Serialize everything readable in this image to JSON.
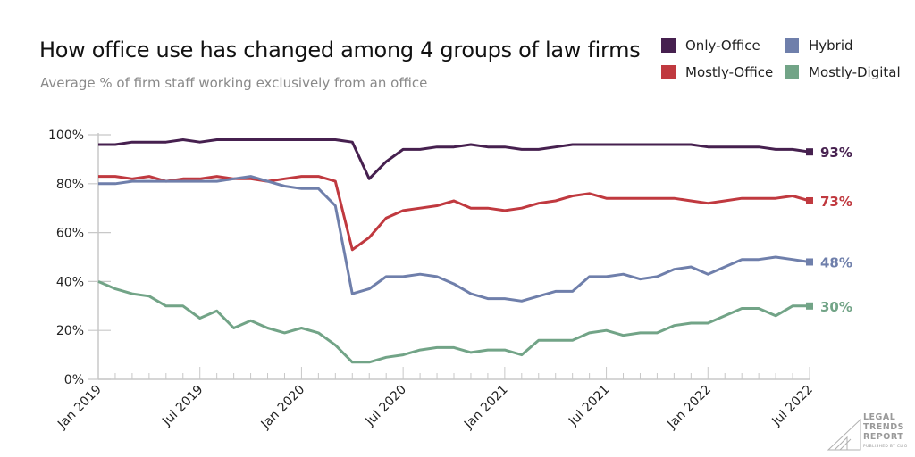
{
  "chart_data": {
    "type": "line",
    "title": "How office use has changed among 4 groups of law firms",
    "subtitle": "Average % of firm staff working exclusively from an office",
    "xlabel": "",
    "ylabel": "",
    "ylim": [
      0,
      100
    ],
    "yticks": [
      0,
      20,
      40,
      60,
      80,
      100
    ],
    "ytick_labels": [
      "0%",
      "20%",
      "40%",
      "60%",
      "80%",
      "100%"
    ],
    "x_start": "Jan 2019",
    "x_end": "Jul 2022",
    "x_count": 43,
    "x_interval": "monthly",
    "xtick_labels": [
      "Jan 2019",
      "Jul 2019",
      "Jan 2020",
      "Jul 2020",
      "Jan 2021",
      "Jul 2021",
      "Jan 2022",
      "Jul 2022"
    ],
    "xtick_indices": [
      0,
      6,
      12,
      18,
      24,
      30,
      36,
      42
    ],
    "grid": false,
    "legend_position": "top-right",
    "series": [
      {
        "name": "Only-Office",
        "color": "#46204f",
        "end_label": "93%",
        "values": [
          96,
          96,
          97,
          97,
          97,
          98,
          97,
          98,
          98,
          98,
          98,
          98,
          98,
          98,
          98,
          97,
          82,
          89,
          94,
          94,
          95,
          95,
          96,
          95,
          95,
          94,
          94,
          95,
          96,
          96,
          96,
          96,
          96,
          96,
          96,
          96,
          95,
          95,
          95,
          95,
          94,
          94,
          93
        ]
      },
      {
        "name": "Mostly-Office",
        "color": "#c0393f",
        "end_label": "73%",
        "values": [
          83,
          83,
          82,
          83,
          81,
          82,
          82,
          83,
          82,
          82,
          81,
          82,
          83,
          83,
          81,
          53,
          58,
          66,
          69,
          70,
          71,
          73,
          70,
          70,
          69,
          70,
          72,
          73,
          75,
          76,
          74,
          74,
          74,
          74,
          74,
          73,
          72,
          73,
          74,
          74,
          74,
          75,
          73
        ]
      },
      {
        "name": "Hybrid",
        "color": "#6f7fab",
        "end_label": "48%",
        "values": [
          80,
          80,
          81,
          81,
          81,
          81,
          81,
          81,
          82,
          83,
          81,
          79,
          78,
          78,
          71,
          35,
          37,
          42,
          42,
          43,
          42,
          39,
          35,
          33,
          33,
          32,
          34,
          36,
          36,
          42,
          42,
          43,
          41,
          42,
          45,
          46,
          43,
          46,
          49,
          49,
          50,
          49,
          48
        ]
      },
      {
        "name": "Mostly-Digital",
        "color": "#72a487",
        "end_label": "30%",
        "values": [
          40,
          37,
          35,
          34,
          30,
          30,
          25,
          28,
          21,
          24,
          21,
          19,
          21,
          19,
          14,
          7,
          7,
          9,
          10,
          12,
          13,
          13,
          11,
          12,
          12,
          10,
          16,
          16,
          16,
          19,
          20,
          18,
          19,
          19,
          22,
          23,
          23,
          26,
          29,
          29,
          26,
          30,
          30
        ]
      }
    ]
  },
  "legend": {
    "items": [
      {
        "label": "Only-Office",
        "color": "#46204f"
      },
      {
        "label": "Hybrid",
        "color": "#6f7fab"
      },
      {
        "label": "Mostly-Office",
        "color": "#c0393f"
      },
      {
        "label": "Mostly-Digital",
        "color": "#72a487"
      }
    ]
  },
  "logo": {
    "line1": "LEGAL",
    "line2": "TRENDS",
    "line3": "REPORT",
    "tagline": "PUBLISHED BY CLIO"
  },
  "colors": {
    "axis": "#c8c8c8",
    "title": "#111111",
    "subtitle": "#8a8a8a"
  }
}
